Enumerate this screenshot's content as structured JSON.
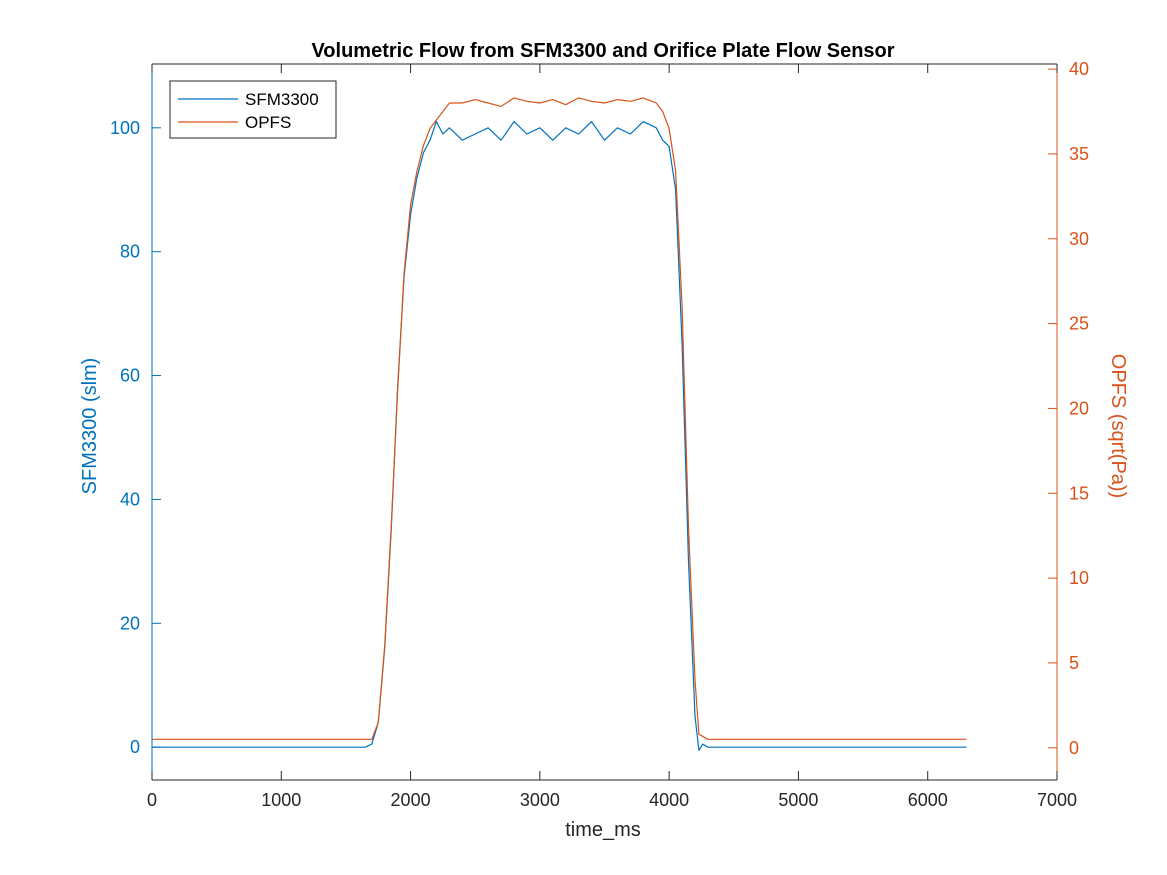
{
  "chart_data": {
    "type": "line",
    "title": "Volumetric Flow from SFM3300 and Orifice Plate Flow Sensor",
    "xlabel": "time_ms",
    "ylabel_left": "SFM3300 (slm)",
    "ylabel_right": "OPFS (sqrt(Pa))",
    "xlim": [
      0,
      7000
    ],
    "ylim_left": [
      -5.3,
      110.3
    ],
    "ylim_right": [
      -1.9,
      40.3
    ],
    "x_ticks": [
      0,
      1000,
      2000,
      3000,
      4000,
      5000,
      6000,
      7000
    ],
    "y_left_ticks": [
      0,
      20,
      40,
      60,
      80,
      100
    ],
    "y_right_ticks": [
      0,
      5,
      10,
      15,
      20,
      25,
      30,
      35,
      40
    ],
    "grid": false,
    "legend_position": "top-left",
    "colors": {
      "left": "#0072BD",
      "right": "#D95319",
      "axis": "#262626"
    },
    "series": [
      {
        "name": "SFM3300",
        "axis": "left",
        "color": "#0072BD",
        "x": [
          0,
          1650,
          1700,
          1750,
          1800,
          1850,
          1900,
          1950,
          2000,
          2050,
          2100,
          2150,
          2200,
          2250,
          2300,
          2400,
          2500,
          2600,
          2700,
          2800,
          2900,
          3000,
          3100,
          3200,
          3300,
          3400,
          3500,
          3600,
          3700,
          3800,
          3900,
          3950,
          4000,
          4050,
          4100,
          4150,
          4200,
          4230,
          4260,
          4300,
          4400,
          6300
        ],
        "y": [
          0,
          0,
          0.5,
          4,
          16,
          35,
          58,
          76,
          86,
          92,
          96,
          98,
          101,
          99,
          100,
          98,
          99,
          100,
          98,
          101,
          99,
          100,
          98,
          100,
          99,
          101,
          98,
          100,
          99,
          101,
          100,
          98,
          97,
          90,
          65,
          30,
          5,
          -0.5,
          0.5,
          0,
          0,
          0
        ]
      },
      {
        "name": "OPFS",
        "axis": "right",
        "color": "#D95319",
        "x": [
          0,
          1700,
          1750,
          1800,
          1850,
          1900,
          1950,
          2000,
          2050,
          2100,
          2150,
          2200,
          2250,
          2300,
          2400,
          2500,
          2600,
          2700,
          2800,
          2900,
          3000,
          3100,
          3200,
          3300,
          3400,
          3500,
          3600,
          3700,
          3800,
          3900,
          3950,
          4000,
          4050,
          4100,
          4150,
          4200,
          4230,
          4300,
          6300
        ],
        "y": [
          0.5,
          0.5,
          1.5,
          6,
          13,
          21,
          28,
          32,
          34,
          35.5,
          36.5,
          37,
          37.5,
          38,
          38,
          38.2,
          38,
          37.8,
          38.3,
          38.1,
          38,
          38.2,
          37.9,
          38.3,
          38.1,
          38,
          38.2,
          38.1,
          38.3,
          38,
          37.5,
          36.5,
          34,
          26,
          13,
          4,
          0.8,
          0.5,
          0.5
        ]
      }
    ]
  }
}
